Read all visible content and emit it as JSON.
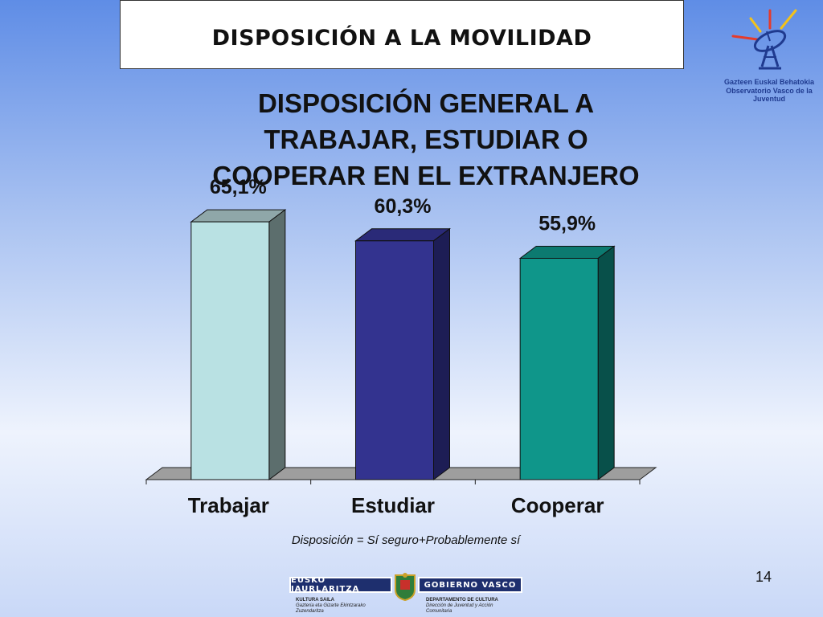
{
  "header": {
    "title": "DISPOSICIÓN A LA MOVILIDAD"
  },
  "logo_top": {
    "line1": "Gazteen Euskal Behatokia",
    "line2": "Observatorio Vasco de la Juventud"
  },
  "chart_data": {
    "type": "bar",
    "title": "DISPOSICIÓN GENERAL A TRABAJAR, ESTUDIAR O COOPERAR EN EL EXTRANJERO",
    "categories": [
      "Trabajar",
      "Estudiar",
      "Cooperar"
    ],
    "values": [
      65.1,
      60.3,
      55.9
    ],
    "data_labels": [
      "65,1%",
      "60,3%",
      "55,9%"
    ],
    "colors": [
      {
        "front": "#b9e1e3",
        "side": "#5c6e6d",
        "top": "#8fa7a9"
      },
      {
        "front": "#33338f",
        "side": "#1d1d55",
        "top": "#2a2a78"
      },
      {
        "front": "#0f968a",
        "side": "#08504a",
        "top": "#0c7a70"
      }
    ],
    "floor_color": "#9e9e9e",
    "three_d": true,
    "xlabel": "",
    "ylabel": "",
    "ylim": [
      0,
      70
    ],
    "grid": false,
    "legend": "none"
  },
  "footnote": "Disposición = Sí seguro+Probablemente sí",
  "page_number": "14",
  "gov_logo": {
    "left_bar": "EUSKO JAURLARITZA",
    "right_bar": "GOBIERNO VASCO",
    "left_dept": "KULTURA SAILA",
    "left_sub": "Gazteria eta Gizarte Ekintzarako Zuzendaritza",
    "right_dept": "DEPARTAMENTO DE CULTURA",
    "right_sub": "Dirección de Juventud y Acción Comunitaria"
  }
}
